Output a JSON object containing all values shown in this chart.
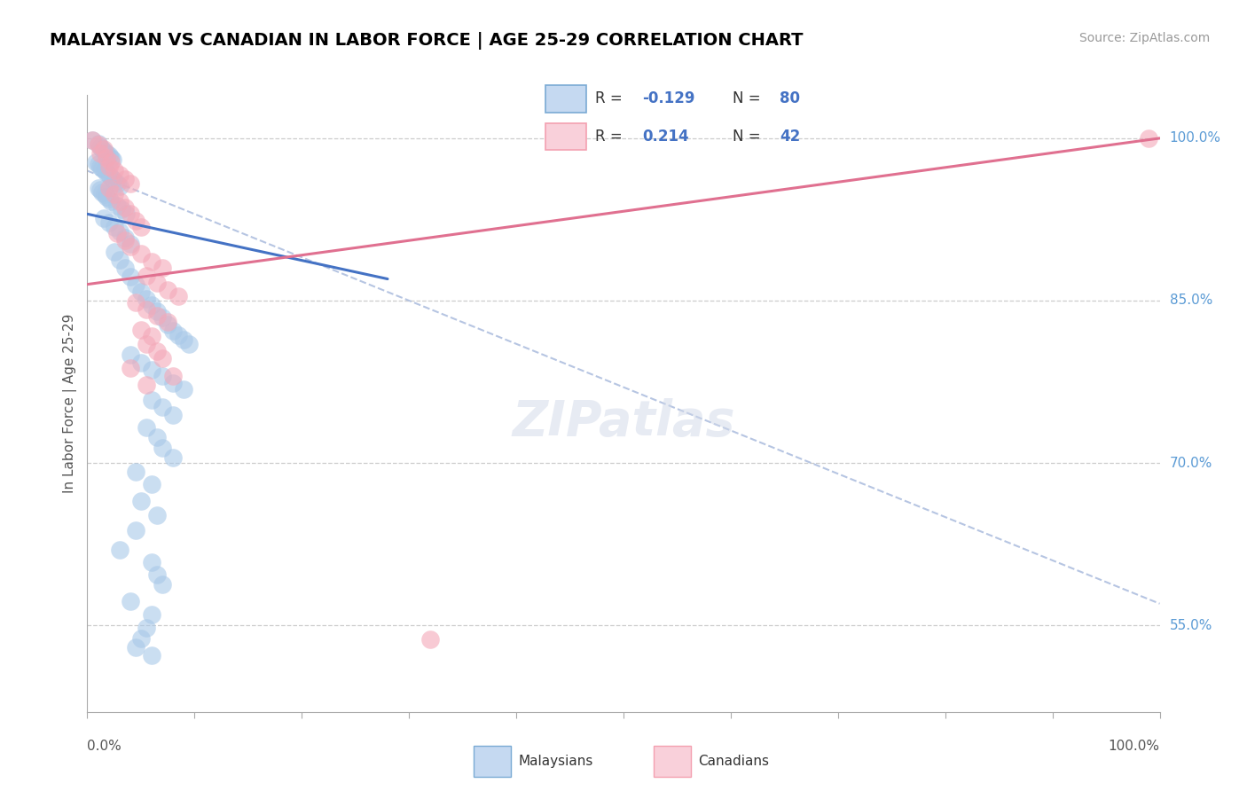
{
  "title": "MALAYSIAN VS CANADIAN IN LABOR FORCE | AGE 25-29 CORRELATION CHART",
  "source": "Source: ZipAtlas.com",
  "ylabel": "In Labor Force | Age 25-29",
  "right_yticks": [
    55.0,
    70.0,
    85.0,
    100.0
  ],
  "xlim": [
    0.0,
    1.0
  ],
  "ylim": [
    0.47,
    1.04
  ],
  "blue_color": "#a8c8e8",
  "pink_color": "#f4a8b8",
  "blue_line_color": "#4472c4",
  "pink_line_color": "#e07090",
  "dashed_line_color": "#aabbdd",
  "title_fontsize": 14,
  "source_fontsize": 10,
  "tick_color": "#5b9bd5",
  "blue_scatter": [
    [
      0.005,
      0.998
    ],
    [
      0.01,
      0.995
    ],
    [
      0.012,
      0.992
    ],
    [
      0.014,
      0.99
    ],
    [
      0.016,
      0.988
    ],
    [
      0.018,
      0.986
    ],
    [
      0.02,
      0.984
    ],
    [
      0.022,
      0.982
    ],
    [
      0.024,
      0.98
    ],
    [
      0.008,
      0.978
    ],
    [
      0.01,
      0.976
    ],
    [
      0.012,
      0.974
    ],
    [
      0.014,
      0.972
    ],
    [
      0.016,
      0.97
    ],
    [
      0.018,
      0.968
    ],
    [
      0.02,
      0.966
    ],
    [
      0.022,
      0.964
    ],
    [
      0.024,
      0.962
    ],
    [
      0.026,
      0.96
    ],
    [
      0.028,
      0.958
    ],
    [
      0.03,
      0.956
    ],
    [
      0.01,
      0.954
    ],
    [
      0.012,
      0.952
    ],
    [
      0.014,
      0.95
    ],
    [
      0.016,
      0.948
    ],
    [
      0.018,
      0.946
    ],
    [
      0.02,
      0.944
    ],
    [
      0.022,
      0.942
    ],
    [
      0.028,
      0.938
    ],
    [
      0.032,
      0.934
    ],
    [
      0.036,
      0.93
    ],
    [
      0.015,
      0.926
    ],
    [
      0.02,
      0.922
    ],
    [
      0.025,
      0.918
    ],
    [
      0.03,
      0.914
    ],
    [
      0.035,
      0.908
    ],
    [
      0.04,
      0.902
    ],
    [
      0.025,
      0.895
    ],
    [
      0.03,
      0.888
    ],
    [
      0.035,
      0.88
    ],
    [
      0.04,
      0.872
    ],
    [
      0.045,
      0.865
    ],
    [
      0.05,
      0.858
    ],
    [
      0.055,
      0.852
    ],
    [
      0.06,
      0.846
    ],
    [
      0.065,
      0.84
    ],
    [
      0.07,
      0.834
    ],
    [
      0.075,
      0.828
    ],
    [
      0.08,
      0.822
    ],
    [
      0.085,
      0.818
    ],
    [
      0.09,
      0.814
    ],
    [
      0.095,
      0.81
    ],
    [
      0.04,
      0.8
    ],
    [
      0.05,
      0.793
    ],
    [
      0.06,
      0.786
    ],
    [
      0.07,
      0.78
    ],
    [
      0.08,
      0.774
    ],
    [
      0.09,
      0.768
    ],
    [
      0.06,
      0.758
    ],
    [
      0.07,
      0.752
    ],
    [
      0.08,
      0.744
    ],
    [
      0.055,
      0.733
    ],
    [
      0.065,
      0.724
    ],
    [
      0.07,
      0.714
    ],
    [
      0.08,
      0.705
    ],
    [
      0.045,
      0.692
    ],
    [
      0.06,
      0.68
    ],
    [
      0.05,
      0.665
    ],
    [
      0.065,
      0.652
    ],
    [
      0.045,
      0.638
    ],
    [
      0.03,
      0.62
    ],
    [
      0.06,
      0.608
    ],
    [
      0.065,
      0.597
    ],
    [
      0.07,
      0.588
    ],
    [
      0.04,
      0.572
    ],
    [
      0.06,
      0.56
    ],
    [
      0.055,
      0.548
    ],
    [
      0.05,
      0.538
    ],
    [
      0.045,
      0.53
    ],
    [
      0.06,
      0.522
    ]
  ],
  "pink_scatter": [
    [
      0.005,
      0.998
    ],
    [
      0.01,
      0.994
    ],
    [
      0.015,
      0.99
    ],
    [
      0.012,
      0.986
    ],
    [
      0.018,
      0.982
    ],
    [
      0.022,
      0.978
    ],
    [
      0.02,
      0.974
    ],
    [
      0.025,
      0.97
    ],
    [
      0.03,
      0.966
    ],
    [
      0.035,
      0.962
    ],
    [
      0.04,
      0.958
    ],
    [
      0.02,
      0.954
    ],
    [
      0.025,
      0.948
    ],
    [
      0.03,
      0.942
    ],
    [
      0.035,
      0.936
    ],
    [
      0.04,
      0.93
    ],
    [
      0.045,
      0.924
    ],
    [
      0.05,
      0.918
    ],
    [
      0.028,
      0.912
    ],
    [
      0.035,
      0.906
    ],
    [
      0.04,
      0.9
    ],
    [
      0.05,
      0.893
    ],
    [
      0.06,
      0.886
    ],
    [
      0.07,
      0.88
    ],
    [
      0.055,
      0.873
    ],
    [
      0.065,
      0.866
    ],
    [
      0.075,
      0.86
    ],
    [
      0.085,
      0.854
    ],
    [
      0.045,
      0.848
    ],
    [
      0.055,
      0.842
    ],
    [
      0.065,
      0.836
    ],
    [
      0.075,
      0.83
    ],
    [
      0.05,
      0.823
    ],
    [
      0.06,
      0.817
    ],
    [
      0.055,
      0.81
    ],
    [
      0.065,
      0.803
    ],
    [
      0.07,
      0.797
    ],
    [
      0.04,
      0.788
    ],
    [
      0.08,
      0.78
    ],
    [
      0.055,
      0.772
    ],
    [
      0.32,
      0.537
    ],
    [
      0.99,
      1.0
    ]
  ],
  "blue_line_x": [
    0.0,
    0.28
  ],
  "blue_line_y": [
    0.93,
    0.87
  ],
  "pink_line_x": [
    0.0,
    1.0
  ],
  "pink_line_y": [
    0.865,
    1.0
  ],
  "dashed_line_x": [
    0.0,
    1.0
  ],
  "dashed_line_y": [
    0.97,
    0.57
  ],
  "grid_yticks": [
    0.55,
    0.7,
    0.85,
    1.0
  ],
  "xticks_minor": [
    0.0,
    0.1,
    0.2,
    0.3,
    0.4,
    0.5,
    0.6,
    0.7,
    0.8,
    0.9,
    1.0
  ]
}
